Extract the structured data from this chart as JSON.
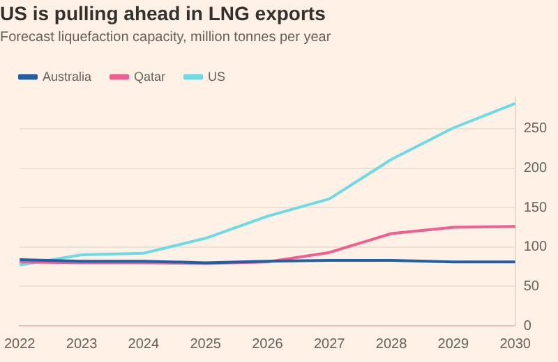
{
  "chart_data": {
    "type": "line",
    "title": "US is pulling ahead in LNG exports",
    "subtitle": "Forecast liquefaction capacity, million tonnes per year",
    "categories": [
      "2022",
      "2023",
      "2024",
      "2025",
      "2026",
      "2027",
      "2028",
      "2029",
      "2030"
    ],
    "series": [
      {
        "name": "Australia",
        "color": "#1f5fa8",
        "values": [
          84,
          82,
          82,
          80,
          82,
          83,
          83,
          81,
          81
        ]
      },
      {
        "name": "Qatar",
        "color": "#ef5f8f",
        "values": [
          81,
          80,
          80,
          79,
          81,
          93,
          117,
          125,
          126
        ]
      },
      {
        "name": "US",
        "color": "#6ddbe6",
        "values": [
          77,
          90,
          92,
          111,
          139,
          161,
          211,
          251,
          282
        ]
      }
    ],
    "ylim": [
      0,
      290
    ],
    "yticks": [
      0,
      50,
      100,
      150,
      200,
      250
    ],
    "grid": "y",
    "legend": "top left",
    "marker": "none",
    "line_style": "solid"
  }
}
